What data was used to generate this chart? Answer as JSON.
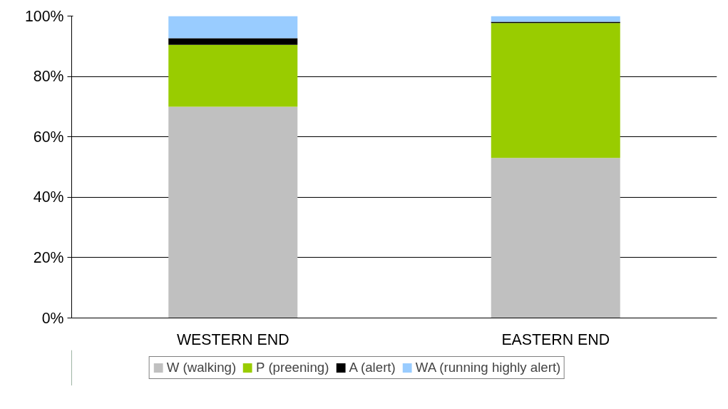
{
  "chart_data": {
    "type": "bar",
    "stacked": true,
    "categories": [
      "WESTERN END",
      "EASTERN END"
    ],
    "series": [
      {
        "name": "W (walking)",
        "color": "#c0c0c0",
        "values": [
          70,
          53
        ]
      },
      {
        "name": "P (preening)",
        "color": "#99cc00",
        "values": [
          20.5,
          44.7
        ]
      },
      {
        "name": "A (alert)",
        "color": "#000000",
        "values": [
          2.2,
          0.4
        ]
      },
      {
        "name": "WA (running highly alert)",
        "color": "#99ccff",
        "values": [
          7.3,
          1.9
        ]
      }
    ],
    "ylim": [
      0,
      100
    ],
    "yticks": [
      {
        "value": 0,
        "label": "0%"
      },
      {
        "value": 20,
        "label": "20%"
      },
      {
        "value": 40,
        "label": "40%"
      },
      {
        "value": 60,
        "label": "60%"
      },
      {
        "value": 80,
        "label": "80%"
      },
      {
        "value": 100,
        "label": "100%"
      }
    ],
    "grid": "y",
    "legend": "bottom"
  }
}
